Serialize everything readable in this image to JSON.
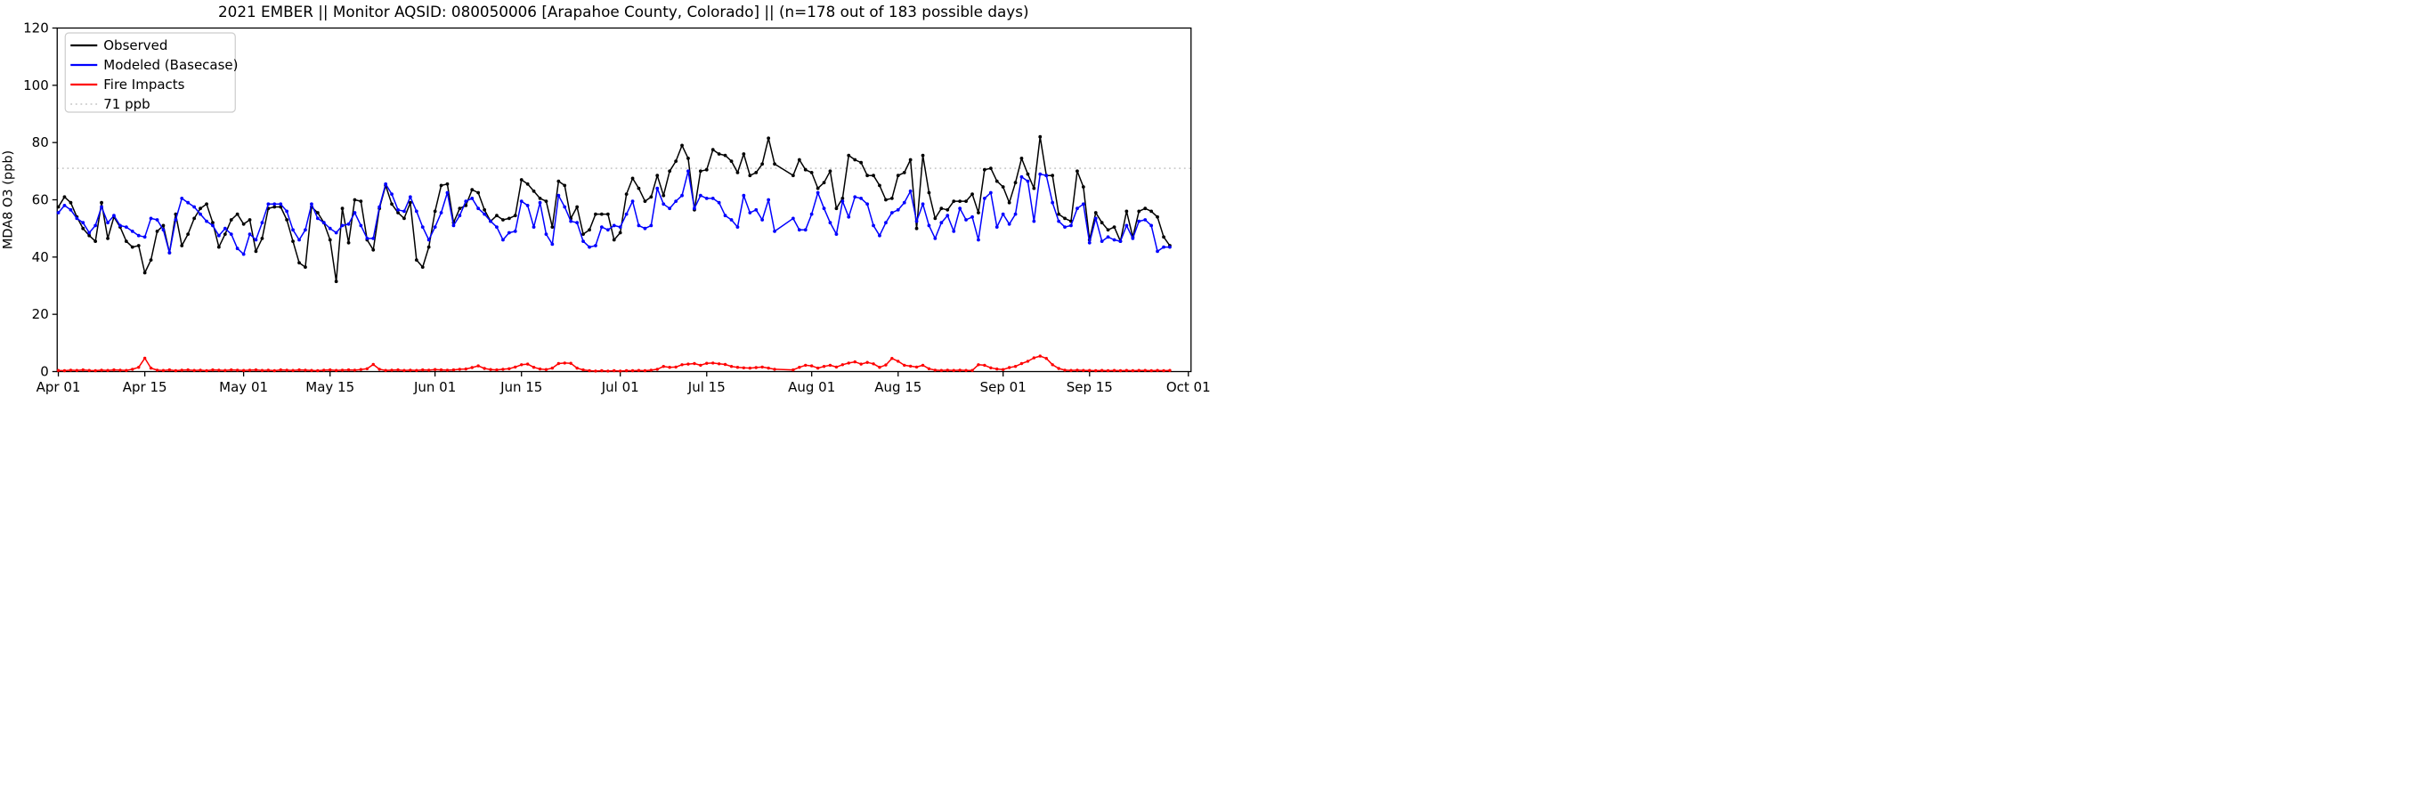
{
  "figure": {
    "title": "2021 EMBER || Monitor AQSID: 080050006 [Arapahoe County, Colorado] || (n=178 out of 183 possible days)"
  },
  "chart_data": {
    "type": "line",
    "title": "2021 EMBER || Monitor AQSID: 080050006 [Arapahoe County, Colorado] || (n=178 out of 183 possible days)",
    "xlabel": "",
    "ylabel": "MDA8 O3 (ppb)",
    "ylim": [
      0,
      120
    ],
    "yticks": [
      0,
      20,
      40,
      60,
      80,
      100,
      120
    ],
    "grid": false,
    "legend_position": "upper left",
    "n_days_shown": 178,
    "n_days_possible": 183,
    "x_unit": "day index, 0 = Apr 01 2021; one value per day through Sep 28",
    "xticks": [
      {
        "day": 0,
        "label": "Apr 01"
      },
      {
        "day": 14,
        "label": "Apr 15"
      },
      {
        "day": 30,
        "label": "May 01"
      },
      {
        "day": 44,
        "label": "May 15"
      },
      {
        "day": 61,
        "label": "Jun 01"
      },
      {
        "day": 75,
        "label": "Jun 15"
      },
      {
        "day": 91,
        "label": "Jul 01"
      },
      {
        "day": 105,
        "label": "Jul 15"
      },
      {
        "day": 122,
        "label": "Aug 01"
      },
      {
        "day": 136,
        "label": "Aug 15"
      },
      {
        "day": 153,
        "label": "Sep 01"
      },
      {
        "day": 167,
        "label": "Sep 15"
      },
      {
        "day": 183,
        "label": "Oct 01"
      }
    ],
    "threshold": {
      "value": 71,
      "label": "71 ppb",
      "color": "#cccccc",
      "style": "dotted"
    },
    "legend": [
      {
        "label": "Observed",
        "color": "#000000",
        "style": "solid"
      },
      {
        "label": "Modeled (Basecase)",
        "color": "#0000ff",
        "style": "solid"
      },
      {
        "label": "Fire Impacts",
        "color": "#ff0000",
        "style": "solid"
      },
      {
        "label": "71 ppb",
        "color": "#cccccc",
        "style": "dotted"
      }
    ],
    "series": [
      {
        "name": "Observed",
        "color": "#000000",
        "marker": "circle",
        "values": [
          57.5,
          61,
          59,
          54,
          50,
          47.5,
          45.5,
          59,
          46.5,
          54,
          50.5,
          45.5,
          43.5,
          44,
          34.5,
          39,
          49,
          51,
          41.5,
          55,
          44,
          48,
          53.5,
          57,
          58.5,
          52,
          43.5,
          48,
          53,
          55,
          51.5,
          53,
          42,
          46.5,
          57,
          57.5,
          57.5,
          53,
          45.5,
          38,
          36.5,
          57.5,
          55.5,
          52,
          46,
          31.5,
          57,
          45,
          60,
          59.5,
          46,
          42.5,
          57,
          65,
          58.5,
          55.5,
          53.5,
          59,
          39,
          36.5,
          43.5,
          56,
          65,
          65.5,
          52,
          57,
          58,
          63.5,
          62.5,
          56.5,
          52.5,
          54.5,
          53,
          53.5,
          54.5,
          67,
          65.5,
          63,
          60.5,
          59.5,
          50.5,
          66.5,
          65,
          53.5,
          57.5,
          48,
          49.5,
          55,
          55,
          55,
          46,
          48.5,
          62,
          67.5,
          64,
          59.5,
          61,
          68.5,
          61.5,
          70,
          73.5,
          79,
          74.5,
          56.5,
          70,
          70.5,
          77.5,
          76,
          75.5,
          73.5,
          69.5,
          76,
          68.5,
          69.5,
          72.5,
          81.5,
          72.5,
          null,
          null,
          68.5,
          74,
          70.5,
          69.5,
          64,
          66,
          70,
          57,
          60.5,
          75.5,
          74,
          73,
          68.5,
          68.5,
          65,
          60,
          60.5,
          68.5,
          69.5,
          74,
          50,
          75.5,
          62.5,
          53.5,
          57,
          56.5,
          59.5,
          59.5,
          59.5,
          62,
          55.5,
          70.5,
          71,
          66.5,
          64.5,
          59,
          66,
          74.5,
          69,
          64,
          82,
          68.5,
          68.5,
          55,
          53.5,
          52.5,
          70,
          64.5,
          46,
          55.5,
          52,
          49.5,
          50.5,
          45.5,
          56,
          47,
          56,
          57,
          56,
          54,
          47,
          44
        ]
      },
      {
        "name": "Modeled (Basecase)",
        "color": "#0000ff",
        "marker": "circle",
        "values": [
          55.5,
          58,
          56.5,
          53.5,
          52,
          48.5,
          51,
          57.5,
          52,
          54.5,
          51,
          50.5,
          49,
          47.5,
          47,
          53.5,
          53,
          49.5,
          41.5,
          53,
          60.5,
          59,
          57.5,
          55,
          52.5,
          51,
          47.5,
          50,
          48,
          43,
          41,
          48,
          46,
          52,
          58.5,
          58.5,
          58.5,
          56,
          49.5,
          46,
          49.5,
          58.5,
          53.5,
          52,
          50,
          48.5,
          51,
          51.5,
          55.5,
          51,
          46.5,
          46.5,
          57.5,
          65.5,
          62,
          56.5,
          56,
          61,
          56,
          50.5,
          46,
          50.5,
          55.5,
          62.5,
          51,
          54.5,
          59.5,
          60.5,
          57,
          55,
          52.5,
          50.5,
          46,
          48.5,
          49,
          59.5,
          58,
          50.5,
          59,
          48,
          44.5,
          61.5,
          57.5,
          52.5,
          52,
          45.5,
          43.5,
          44,
          50.5,
          49.5,
          51,
          50.5,
          55,
          59.5,
          51,
          50,
          51,
          64,
          58.5,
          57,
          59.5,
          61.5,
          70,
          57,
          61.5,
          60.5,
          60.5,
          59,
          54.5,
          53,
          50.5,
          61.5,
          55.5,
          56.5,
          53,
          60,
          49,
          null,
          null,
          53.5,
          49.5,
          49.5,
          55,
          62.5,
          57,
          52,
          48,
          59.5,
          54,
          61,
          60.5,
          58.5,
          51,
          47.5,
          52,
          55.5,
          56.5,
          59,
          63,
          52.5,
          58.5,
          51,
          46.5,
          52,
          54.5,
          49,
          57,
          53,
          54,
          46,
          60.5,
          62.5,
          50.5,
          55,
          51.5,
          55,
          68,
          66.5,
          52.5,
          69,
          68.5,
          59,
          52.5,
          50.5,
          51,
          57,
          58.5,
          45,
          53.5,
          45.5,
          47,
          46,
          45.5,
          51,
          46.5,
          52.5,
          53,
          51,
          42,
          43.5,
          43.5
        ]
      },
      {
        "name": "Fire Impacts",
        "color": "#ff0000",
        "marker": "circle",
        "values": [
          0.4,
          0.3,
          0.5,
          0.4,
          0.6,
          0.4,
          0.3,
          0.5,
          0.4,
          0.6,
          0.5,
          0.4,
          0.8,
          1.5,
          4.7,
          1.2,
          0.5,
          0.4,
          0.6,
          0.3,
          0.5,
          0.6,
          0.4,
          0.5,
          0.3,
          0.6,
          0.5,
          0.4,
          0.6,
          0.5,
          0.4,
          0.5,
          0.6,
          0.4,
          0.5,
          0.3,
          0.6,
          0.5,
          0.4,
          0.6,
          0.5,
          0.4,
          0.3,
          0.5,
          0.6,
          0.4,
          0.5,
          0.6,
          0.5,
          0.7,
          1,
          2.5,
          0.8,
          0.4,
          0.5,
          0.6,
          0.4,
          0.5,
          0.4,
          0.6,
          0.5,
          0.7,
          0.6,
          0.5,
          0.6,
          0.8,
          0.9,
          1.4,
          2,
          1.1,
          0.7,
          0.6,
          0.8,
          1,
          1.6,
          2.4,
          2.6,
          1.5,
          0.9,
          0.7,
          1.2,
          2.8,
          3,
          2.9,
          1.2,
          0.6,
          0.3,
          0.2,
          0.3,
          0.2,
          0.3,
          0.2,
          0.3,
          0.3,
          0.4,
          0.3,
          0.5,
          0.8,
          1.8,
          1.5,
          1.6,
          2.4,
          2.6,
          2.8,
          2.2,
          2.9,
          3,
          2.7,
          2.5,
          1.8,
          1.5,
          1.3,
          1.2,
          1.4,
          1.6,
          1.2,
          0.8,
          null,
          null,
          0.6,
          1.5,
          2.2,
          2,
          1.2,
          1.8,
          2.2,
          1.6,
          2.4,
          3,
          3.4,
          2.6,
          3.2,
          2.7,
          1.5,
          2.3,
          4.6,
          3.6,
          2.2,
          1.9,
          1.6,
          2.2,
          1,
          0.5,
          0.4,
          0.5,
          0.4,
          0.5,
          0.4,
          0.4,
          2.4,
          2.2,
          1.3,
          0.9,
          0.7,
          1.4,
          1.8,
          2.8,
          3.6,
          4.8,
          5.4,
          4.6,
          2.4,
          1.1,
          0.5,
          0.4,
          0.5,
          0.4,
          0.4,
          0.3,
          0.4,
          0.3,
          0.4,
          0.3,
          0.4,
          0.3,
          0.4,
          0.4,
          0.3,
          0.4,
          0.3,
          0.4
        ]
      }
    ]
  }
}
